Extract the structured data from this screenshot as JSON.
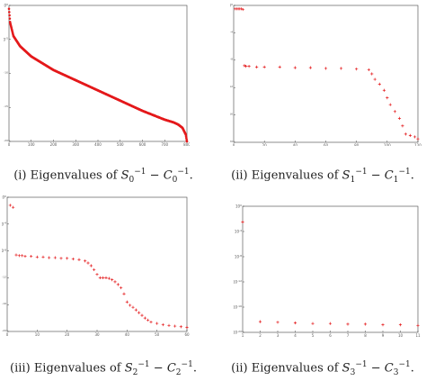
{
  "captions": [
    {
      "num": "(i)",
      "text": "Eigenvalues of",
      "s": "0",
      "c": "0",
      "exp": "−1"
    },
    {
      "num": "(ii)",
      "text": "Eigenvalues of",
      "s": "1",
      "c": "1",
      "exp": "−1"
    },
    {
      "num": "(iii)",
      "text": "Eigenvalues of",
      "s": "2",
      "c": "2",
      "exp": "−1"
    },
    {
      "num": "(ii)",
      "text": "Eigenvalues of",
      "s": "3",
      "c": "3",
      "exp": "−1"
    }
  ],
  "chart_data": [
    {
      "type": "scatter",
      "marker": "dot",
      "color": "#e41a1c",
      "xlim": [
        0,
        800
      ],
      "xticks": [
        "0",
        "100",
        "200",
        "300",
        "400",
        "500",
        "600",
        "700",
        "800"
      ],
      "yscale": "log",
      "ylim_exp": [
        -20,
        0
      ],
      "yticks_exp": [
        0,
        -5,
        -10,
        -15,
        -20
      ],
      "series": [
        {
          "x": [
            0,
            5,
            20,
            50,
            100,
            200,
            300,
            400,
            500,
            600,
            700,
            740,
            760,
            780,
            795,
            800
          ],
          "y_exp": [
            -0.5,
            -2.5,
            -4.5,
            -6.0,
            -7.5,
            -9.5,
            -11.0,
            -12.5,
            -14.0,
            -15.5,
            -16.8,
            -17.2,
            -17.5,
            -18.0,
            -19.0,
            -20.0
          ]
        }
      ]
    },
    {
      "type": "scatter",
      "marker": "plus",
      "color": "#e41a1c",
      "xlim": [
        0,
        120
      ],
      "xticks": [
        "0",
        "20",
        "40",
        "60",
        "80",
        "100",
        "120"
      ],
      "yscale": "log",
      "ylim_exp": [
        -20,
        0
      ],
      "yticks_exp": [
        0,
        -4,
        -8,
        -12,
        -16,
        -20
      ],
      "series": [
        {
          "x": [
            1,
            2,
            3,
            4,
            5,
            6,
            7,
            8,
            10,
            15,
            20,
            30,
            40,
            50,
            60,
            70,
            80,
            88,
            90,
            92,
            95,
            98,
            100,
            102,
            105,
            108,
            110,
            112,
            115,
            118,
            120
          ],
          "y_exp": [
            -0.5,
            -0.5,
            -0.5,
            -0.5,
            -0.5,
            -0.6,
            -8.8,
            -8.9,
            -8.9,
            -9.0,
            -9.0,
            -9.0,
            -9.1,
            -9.1,
            -9.2,
            -9.2,
            -9.3,
            -9.4,
            -10.0,
            -10.8,
            -11.5,
            -12.4,
            -13.5,
            -14.5,
            -15.5,
            -16.5,
            -17.6,
            -18.8,
            -19.0,
            -19.2,
            -19.5
          ]
        }
      ]
    },
    {
      "type": "scatter",
      "marker": "plus",
      "color": "#e41a1c",
      "xlim": [
        0,
        60
      ],
      "xticks": [
        "0",
        "10",
        "20",
        "30",
        "40",
        "50",
        "60"
      ],
      "yscale": "log",
      "ylim_exp": [
        -20,
        0
      ],
      "yticks_exp": [
        0,
        -4,
        -8,
        -12,
        -16,
        -20
      ],
      "series": [
        {
          "x": [
            1,
            2,
            3,
            4,
            5,
            6,
            8,
            10,
            12,
            14,
            16,
            18,
            20,
            22,
            24,
            26,
            27,
            28,
            29,
            30,
            31,
            32,
            33,
            34,
            35,
            36,
            37,
            38,
            39,
            40,
            41,
            42,
            43,
            44,
            45,
            46,
            47,
            48,
            50,
            52,
            54,
            56,
            58,
            60
          ],
          "y_exp": [
            -1.2,
            -1.5,
            -8.6,
            -8.7,
            -8.7,
            -8.8,
            -8.8,
            -8.9,
            -8.9,
            -9.0,
            -9.0,
            -9.1,
            -9.1,
            -9.2,
            -9.3,
            -9.5,
            -9.8,
            -10.2,
            -10.8,
            -11.5,
            -12.0,
            -12.0,
            -12.0,
            -12.1,
            -12.3,
            -12.6,
            -13.0,
            -13.5,
            -14.4,
            -15.6,
            -16.1,
            -16.4,
            -16.8,
            -17.2,
            -17.6,
            -18.0,
            -18.3,
            -18.6,
            -18.8,
            -19.0,
            -19.1,
            -19.2,
            -19.3,
            -19.4
          ]
        }
      ]
    },
    {
      "type": "scatter",
      "marker": "plus",
      "color": "#e41a1c",
      "xlim": [
        1,
        11
      ],
      "xticks": [
        "1",
        "2",
        "3",
        "4",
        "5",
        "6",
        "7",
        "8",
        "9",
        "10",
        "11"
      ],
      "yscale": "log",
      "ylim_exp": [
        -20,
        0
      ],
      "yticks_exp": [
        0,
        -4,
        -8,
        -12,
        -16,
        -20
      ],
      "series": [
        {
          "x": [
            1,
            2,
            3,
            4,
            5,
            6,
            7,
            8,
            9,
            10,
            11
          ],
          "y_exp": [
            -2.5,
            -18.3,
            -18.4,
            -18.5,
            -18.6,
            -18.6,
            -18.7,
            -18.7,
            -18.8,
            -18.8,
            -18.9
          ]
        }
      ]
    }
  ]
}
